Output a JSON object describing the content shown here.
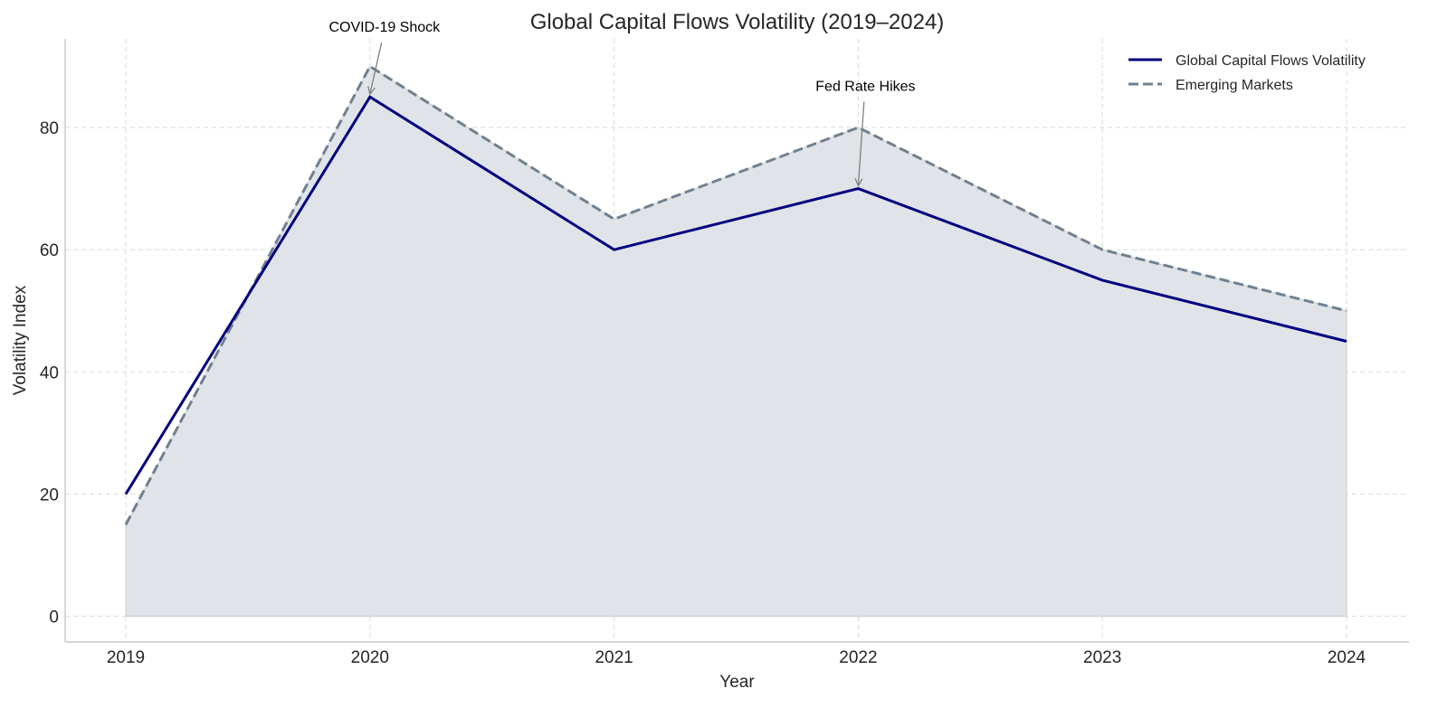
{
  "chart_data": {
    "type": "line",
    "title": "Global Capital Flows Volatility (2019–2024)",
    "xlabel": "Year",
    "ylabel": "Volatility Index",
    "x": [
      "2019",
      "2020",
      "2021",
      "2022",
      "2023",
      "2024"
    ],
    "yticks": [
      "0",
      "20",
      "40",
      "60",
      "80"
    ],
    "ylim": [
      -4.2,
      94.5
    ],
    "grid": true,
    "legend_position": "top-right",
    "series": [
      {
        "name": "Global Capital Flows Volatility",
        "values": [
          20,
          85,
          60,
          70,
          55,
          45
        ],
        "color": "#000080",
        "style": "solid"
      },
      {
        "name": "Emerging Markets",
        "values": [
          15,
          90,
          65,
          80,
          60,
          50
        ],
        "color": "#708090",
        "style": "dashed",
        "fill": "#e0e4e8"
      }
    ],
    "annotations": [
      {
        "text": "COVID-19 Shock",
        "x_index": 1,
        "y": 85
      },
      {
        "text": "Fed Rate Hikes",
        "x_index": 3,
        "y": 70
      }
    ]
  }
}
